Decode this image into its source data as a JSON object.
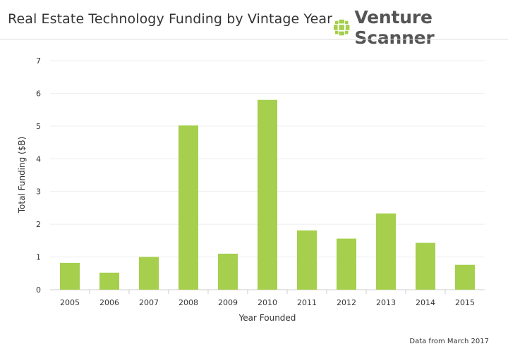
{
  "header": {
    "title": "Real Estate Technology Funding by Vintage Year",
    "brand_name": "Venture Scanner",
    "brand_icon": "venture-scanner-logo-icon",
    "brand_color": "#a5cf4c"
  },
  "footnote": "Data from March 2017",
  "chart_data": {
    "type": "bar",
    "title": "Real Estate Technology Funding by Vintage Year",
    "xlabel": "Year Founded",
    "ylabel": "Total Funding ($B)",
    "categories": [
      "2005",
      "2006",
      "2007",
      "2008",
      "2009",
      "2010",
      "2011",
      "2012",
      "2013",
      "2014",
      "2015"
    ],
    "values": [
      0.82,
      0.52,
      1.0,
      5.02,
      1.1,
      5.8,
      1.81,
      1.56,
      2.33,
      1.43,
      0.76
    ],
    "ylim": [
      0,
      7
    ],
    "yticks": [
      0,
      1,
      2,
      3,
      4,
      5,
      6,
      7
    ],
    "grid": true,
    "bar_color": "#a5cf4c"
  }
}
